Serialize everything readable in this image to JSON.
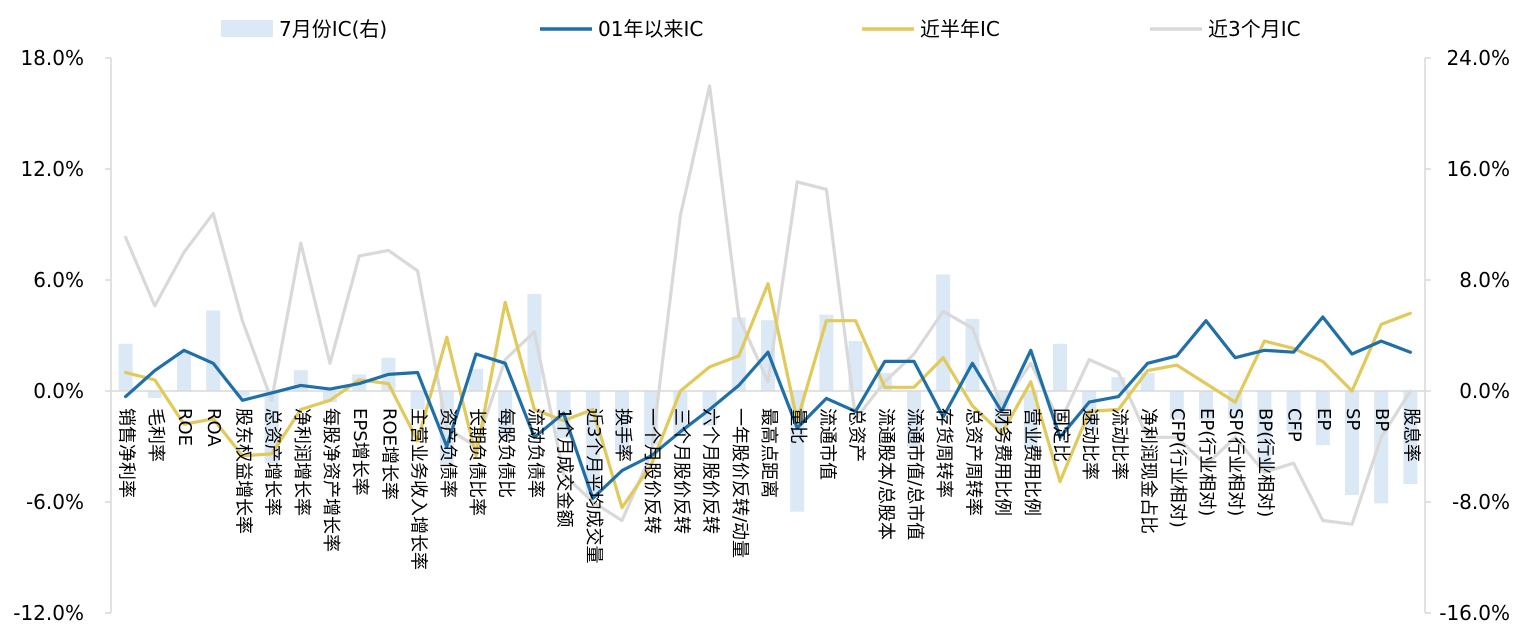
{
  "chart_data": {
    "type": "bar+line",
    "categories": [
      "销售净利率",
      "毛利率",
      "ROE",
      "ROA",
      "股东权益增长率",
      "总资产增长率",
      "净利润增长率",
      "每股净资产增长率",
      "EPS增长率",
      "ROE增长率",
      "主营业务收入增长率",
      "资产负债率",
      "长期负债比率",
      "每股负债比",
      "流动负债率",
      "1个月成交金额",
      "近3个月平均成交量",
      "换手率",
      "一个月股价反转",
      "三个月股价反转",
      "六个月股价反转",
      "一年股价反转/动量",
      "最高点距离",
      "量比",
      "流通市值",
      "总资产",
      "流通股本/总股本",
      "流通市值/总市值",
      "存货周转率",
      "总资产周转率",
      "财务费用比例",
      "营业费用比例",
      "固定比",
      "速动比率",
      "流动比率",
      "净利润现金占比",
      "CFP(行业相对)",
      "EP(行业相对)",
      "SP(行业相对)",
      "BP(行业相对)",
      "CFP",
      "EP",
      "SP",
      "BP",
      "股息率"
    ],
    "series": [
      {
        "name": "7月份IC(右)",
        "type": "bar",
        "axis": "right",
        "color": "#dbe8f5",
        "values": [
          3.4,
          -0.5,
          2.8,
          5.8,
          -0.4,
          -5.2,
          1.5,
          -0.8,
          1.2,
          2.4,
          -1.3,
          -5.4,
          1.6,
          -3.4,
          7.0,
          -3.4,
          -7.5,
          -4.3,
          -3.9,
          -3.2,
          -2.5,
          5.3,
          5.1,
          -8.7,
          5.5,
          3.6,
          1.3,
          -4.0,
          8.4,
          5.2,
          -2.8,
          -4.2,
          3.4,
          -2.8,
          1.0,
          1.3,
          -2.0,
          -2.1,
          -2.0,
          -5.5,
          -2.9,
          -3.9,
          -7.5,
          -8.1,
          -6.7
        ]
      },
      {
        "name": "01年以来IC",
        "type": "line",
        "axis": "left",
        "color": "#1f6fa8",
        "values": [
          -0.3,
          1.1,
          2.2,
          1.5,
          -0.5,
          -0.1,
          0.3,
          0.1,
          0.4,
          0.9,
          1.0,
          -3.0,
          2.0,
          1.5,
          -2.5,
          -1.2,
          -5.8,
          -4.3,
          -3.5,
          -2.2,
          -1.0,
          0.3,
          2.1,
          -2.0,
          -0.4,
          -1.1,
          1.6,
          1.6,
          -1.4,
          1.5,
          -1.1,
          2.2,
          -2.5,
          -0.6,
          -0.3,
          1.5,
          1.9,
          3.8,
          1.8,
          2.2,
          2.1,
          4.0,
          2.0,
          2.7,
          2.1
        ]
      },
      {
        "name": "近半年IC",
        "type": "line",
        "axis": "left",
        "color": "#e1c95a",
        "values": [
          1.0,
          0.6,
          -1.8,
          -1.5,
          -3.5,
          -3.4,
          -1.0,
          -0.5,
          0.6,
          0.4,
          -2.7,
          2.9,
          -3.5,
          4.8,
          -1.0,
          -1.6,
          -1.0,
          -6.3,
          -4.0,
          0.0,
          1.3,
          1.9,
          5.8,
          -1.6,
          3.8,
          3.8,
          0.2,
          0.2,
          1.8,
          -0.8,
          -2.3,
          0.5,
          -4.9,
          -1.1,
          -1.0,
          1.1,
          1.4,
          0.4,
          -0.6,
          2.7,
          2.3,
          1.6,
          0.0,
          3.6,
          4.2
        ]
      },
      {
        "name": "近3个月IC",
        "type": "line",
        "axis": "left",
        "color": "#d9d9d9",
        "values": [
          8.3,
          4.6,
          7.5,
          9.6,
          3.8,
          -0.5,
          8.0,
          1.5,
          7.3,
          7.6,
          6.5,
          -2.0,
          -3.0,
          1.7,
          3.2,
          -4.5,
          -6.0,
          -7.0,
          -3.4,
          9.5,
          16.5,
          4.0,
          0.5,
          11.3,
          10.9,
          -1.5,
          0.5,
          2.0,
          4.3,
          3.4,
          -0.8,
          1.5,
          -1.7,
          1.7,
          1.0,
          -2.5,
          -2.5,
          -4.0,
          -2.5,
          -4.4,
          -3.9,
          -7.0,
          -7.2,
          -2.5,
          0.0
        ]
      }
    ],
    "left_axis": {
      "min": -12.0,
      "max": 18.0,
      "ticks": [
        "-12.0%",
        "-6.0%",
        "0.0%",
        "6.0%",
        "12.0%",
        "18.0%"
      ]
    },
    "right_axis": {
      "min": -16.0,
      "max": 24.0,
      "ticks": [
        "-16.0%",
        "-8.0%",
        "0.0%",
        "8.0%",
        "16.0%",
        "24.0%"
      ]
    },
    "legend_position": "top",
    "grid": false
  }
}
